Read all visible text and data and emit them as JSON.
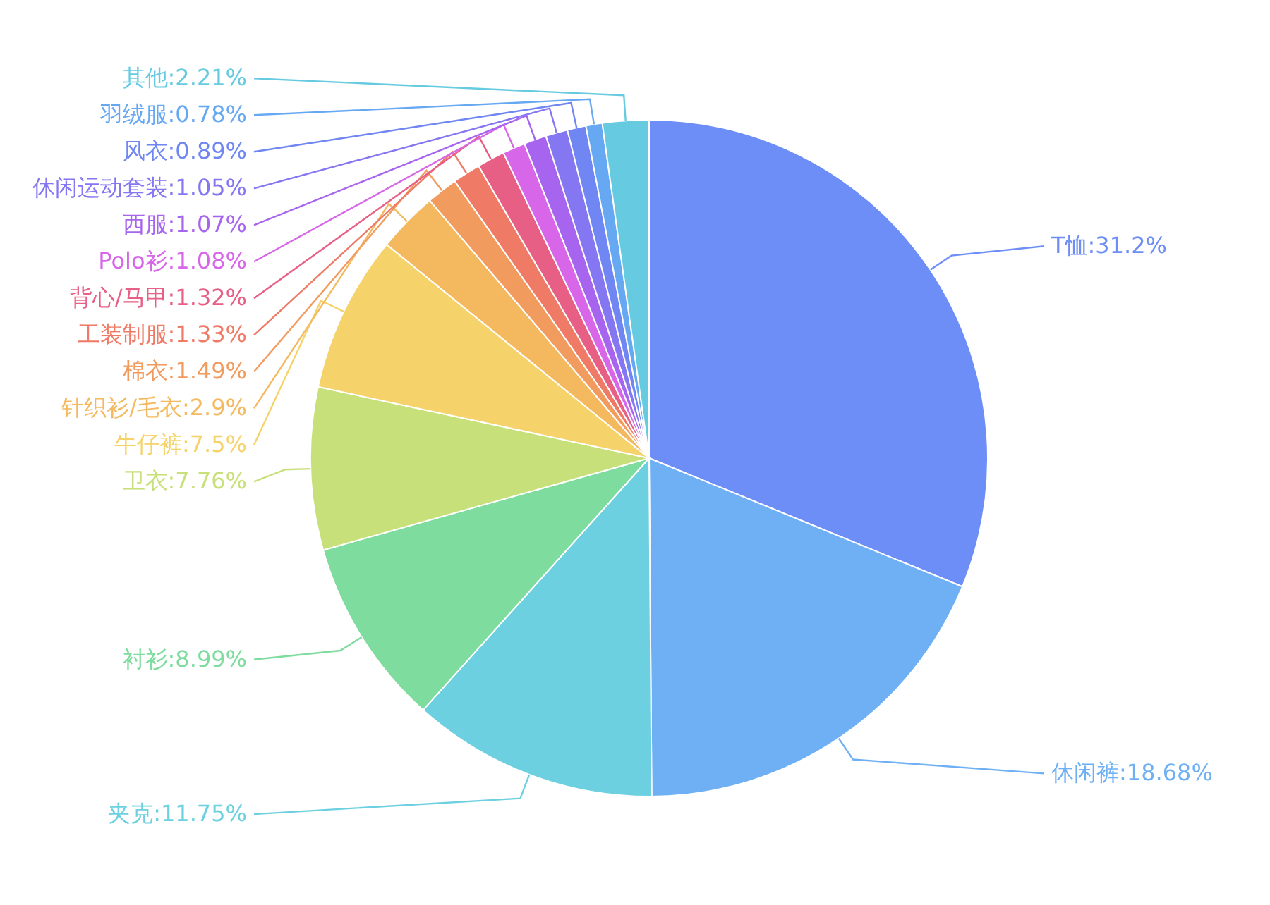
{
  "chart_data": {
    "type": "pie",
    "categories": [
      "T恤",
      "休闲裤",
      "夹克",
      "衬衫",
      "卫衣",
      "牛仔裤",
      "针织衫/毛衣",
      "棉衣",
      "工装制服",
      "背心/马甲",
      "Polo衫",
      "西服",
      "休闲运动套装",
      "风衣",
      "羽绒服",
      "其他"
    ],
    "values": [
      31.2,
      18.68,
      11.75,
      8.99,
      7.76,
      7.5,
      2.9,
      1.49,
      1.33,
      1.32,
      1.08,
      1.07,
      1.05,
      0.89,
      0.78,
      2.21
    ],
    "value_labels": [
      "31.2%",
      "18.68%",
      "11.75%",
      "8.99%",
      "7.76%",
      "7.5%",
      "2.9%",
      "1.49%",
      "1.33%",
      "1.32%",
      "1.08%",
      "1.07%",
      "1.05%",
      "0.89%",
      "0.78%",
      "2.21%"
    ],
    "colors": [
      "#6e8ef7",
      "#6fb0f5",
      "#6cd0e0",
      "#7ddc9e",
      "#c8e07a",
      "#f5d36a",
      "#f4b95e",
      "#f29b5e",
      "#ef7a65",
      "#e85f86",
      "#d766e8",
      "#a765ef",
      "#8577f2",
      "#6f86f3",
      "#67a8f2",
      "#66cbe0"
    ]
  }
}
